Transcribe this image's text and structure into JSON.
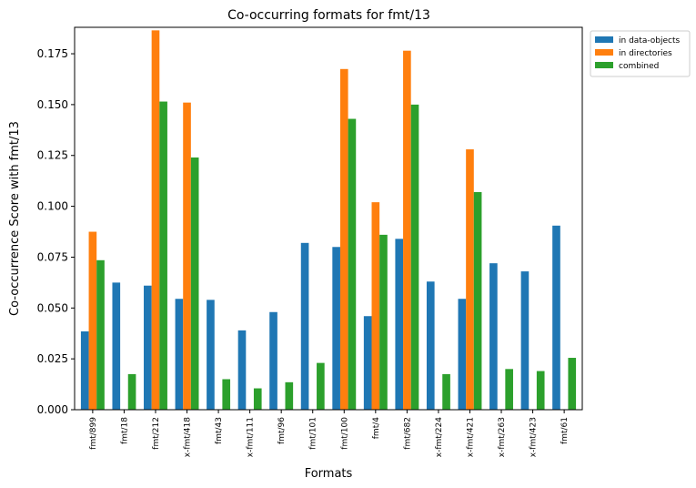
{
  "chart_data": {
    "type": "bar",
    "title": "Co-occurring formats for fmt/13",
    "xlabel": "Formats",
    "ylabel": "Co-occurrence Score with fmt/13",
    "ylim": [
      0,
      0.188
    ],
    "yticks": [
      0.0,
      0.025,
      0.05,
      0.075,
      0.1,
      0.125,
      0.15,
      0.175
    ],
    "ytick_labels": [
      "0.000",
      "0.025",
      "0.050",
      "0.075",
      "0.100",
      "0.125",
      "0.150",
      "0.175"
    ],
    "grid": false,
    "legend_position": "top-right-outside",
    "categories": [
      "fmt/899",
      "fmt/18",
      "fmt/212",
      "x-fmt/418",
      "fmt/43",
      "x-fmt/111",
      "fmt/96",
      "fmt/101",
      "fmt/100",
      "fmt/4",
      "fmt/682",
      "x-fmt/224",
      "x-fmt/421",
      "x-fmt/263",
      "x-fmt/423",
      "fmt/61"
    ],
    "series": [
      {
        "name": "in data-objects",
        "color": "#1f77b4",
        "values": [
          0.0385,
          0.0625,
          0.061,
          0.0545,
          0.054,
          0.039,
          0.048,
          0.082,
          0.08,
          0.046,
          0.084,
          0.063,
          0.0545,
          0.072,
          0.068,
          0.0905
        ]
      },
      {
        "name": "in directories",
        "color": "#ff7f0e",
        "values": [
          0.0875,
          0,
          0.1865,
          0.151,
          0,
          0,
          0,
          0,
          0.1675,
          0.102,
          0.1765,
          0,
          0.128,
          0,
          0,
          0
        ]
      },
      {
        "name": "combined",
        "color": "#2ca02c",
        "values": [
          0.0735,
          0.0175,
          0.1515,
          0.124,
          0.015,
          0.0105,
          0.0135,
          0.023,
          0.143,
          0.086,
          0.15,
          0.0175,
          0.107,
          0.02,
          0.019,
          0.0255
        ]
      }
    ]
  }
}
